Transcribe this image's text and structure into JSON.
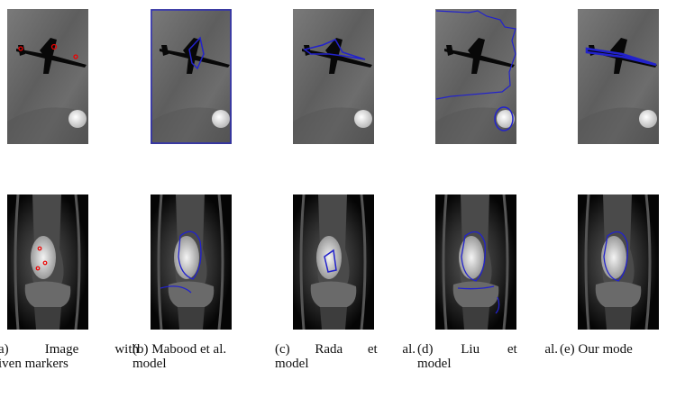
{
  "panels": [
    {
      "caption": [
        "a) Image with",
        "iven markers"
      ]
    },
    {
      "caption": [
        "(b) Mabood et al.",
        "model"
      ]
    },
    {
      "caption": [
        "(c) Rada et al.",
        "model"
      ]
    },
    {
      "caption": [
        "(d) Liu et al.",
        "model"
      ]
    },
    {
      "caption": [
        "(e) Our mode"
      ]
    }
  ]
}
